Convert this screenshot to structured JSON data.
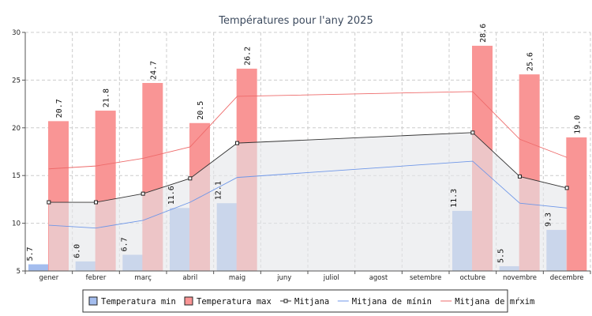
{
  "chart_data": {
    "type": "bar",
    "title": "Températures pour l'any 2025",
    "categories": [
      "gener",
      "febrer",
      "març",
      "abril",
      "maig",
      "juny",
      "juliol",
      "agost",
      "setembre",
      "octubre",
      "novembre",
      "decembre"
    ],
    "ylim": [
      5,
      30
    ],
    "yticks": [
      5,
      10,
      15,
      20,
      25,
      30
    ],
    "grid": true,
    "legend_position": "bottom",
    "series": [
      {
        "name": "Temperatura min",
        "kind": "bar",
        "color": "#a4bdee",
        "values": [
          5.7,
          6.0,
          6.7,
          11.6,
          12.1,
          null,
          null,
          null,
          null,
          11.3,
          5.5,
          9.3
        ]
      },
      {
        "name": "Temperatura max",
        "kind": "bar",
        "color": "#f99595",
        "values": [
          20.7,
          21.8,
          24.7,
          20.5,
          26.2,
          null,
          null,
          null,
          null,
          28.6,
          25.6,
          19.0
        ]
      },
      {
        "name": "Mitjana",
        "kind": "area-line",
        "color": "#333333",
        "fill": "#e4e6ea",
        "values": [
          12.2,
          12.2,
          13.1,
          14.7,
          18.4,
          null,
          null,
          null,
          null,
          19.5,
          14.9,
          13.7
        ]
      },
      {
        "name": "Mitjana de mínin",
        "kind": "line",
        "color": "#6f97e8",
        "values": [
          9.8,
          9.5,
          10.3,
          12.2,
          14.8,
          null,
          null,
          null,
          null,
          16.5,
          12.1,
          11.6
        ]
      },
      {
        "name": "Mitjana de mŕxim",
        "kind": "line",
        "color": "#ee6b6b",
        "values": [
          15.7,
          16.0,
          16.8,
          18.0,
          23.3,
          null,
          null,
          null,
          null,
          23.8,
          18.8,
          16.9
        ]
      }
    ]
  }
}
